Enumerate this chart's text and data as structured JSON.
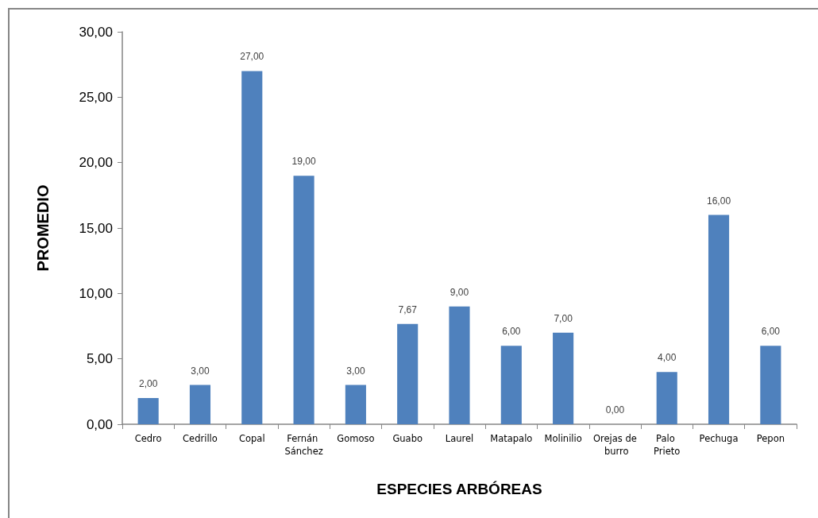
{
  "chart_data": {
    "type": "bar",
    "xlabel": "ESPECIES ARBÓREAS",
    "ylabel": "PROMEDIO",
    "categories": [
      "Cedro",
      "Cedrillo",
      "Copal",
      "Fernán Sánchez",
      "Gomoso",
      "Guabo",
      "Laurel",
      "Matapalo",
      "Molinilio",
      "Orejas de burro",
      "Palo Prieto",
      "Pechuga",
      "Pepon"
    ],
    "values": [
      2,
      3,
      27,
      19,
      3,
      7.67,
      9,
      6,
      7,
      0,
      4,
      16,
      6
    ],
    "value_labels": [
      "2,00",
      "3,00",
      "27,00",
      "19,00",
      "3,00",
      "7,67",
      "9,00",
      "6,00",
      "7,00",
      "0,00",
      "4,00",
      "16,00",
      "6,00"
    ],
    "color": "#4f81bd",
    "ylim": [
      0,
      30
    ],
    "yticks": [
      {
        "value": 0,
        "label": "0,00"
      },
      {
        "value": 5,
        "label": "5,00"
      },
      {
        "value": 10,
        "label": "10,00"
      },
      {
        "value": 15,
        "label": "15,00"
      },
      {
        "value": 20,
        "label": "20,00"
      },
      {
        "value": 25,
        "label": "25,00"
      },
      {
        "value": 30,
        "label": "30,00"
      }
    ]
  }
}
